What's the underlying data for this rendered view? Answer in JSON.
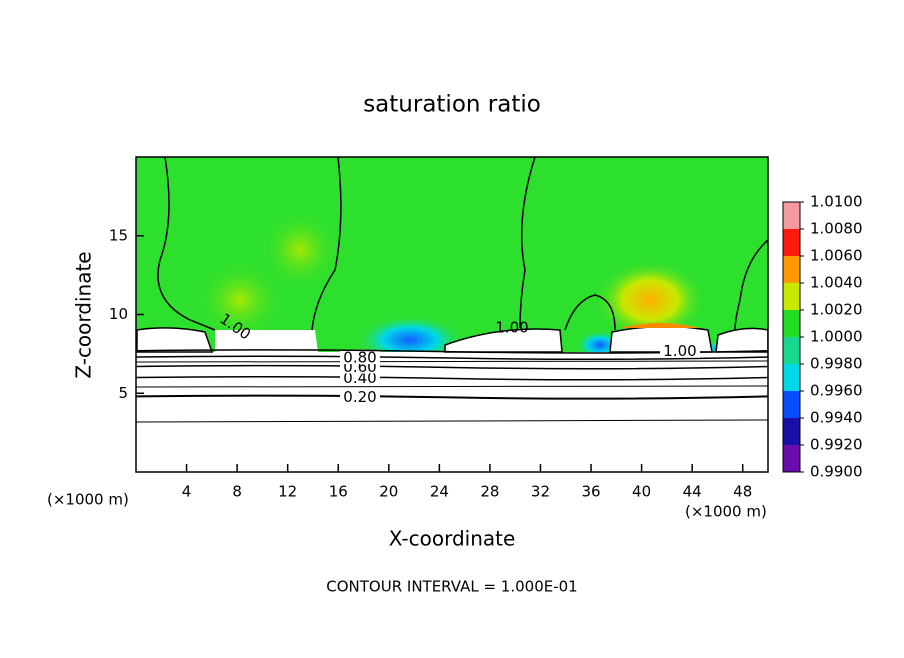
{
  "chart_data": {
    "type": "contour",
    "title": "saturation ratio",
    "x_label": "X-coordinate",
    "y_label": "Z-coordinate",
    "x_unit_left": "(×1000 m)",
    "x_unit_right": "(×1000 m)",
    "footnote": "CONTOUR INTERVAL = 1.000E-01",
    "xlim": [
      0,
      50
    ],
    "ylim": [
      0,
      20
    ],
    "xticks": [
      4,
      8,
      12,
      16,
      20,
      24,
      28,
      32,
      36,
      40,
      44,
      48
    ],
    "yticks": [
      5,
      10,
      15
    ],
    "contours": {
      "levels": [
        0.2,
        0.4,
        0.6,
        0.8,
        1.0
      ],
      "level_labels": [
        "0.20",
        "0.40",
        "0.60",
        "0.80",
        "1.00"
      ],
      "z": [
        4.8,
        6.0,
        6.7,
        7.3,
        7.7
      ]
    },
    "colorbar": {
      "lim": [
        0.99,
        1.01
      ],
      "colors": [
        "#6a0dad",
        "#1a10a8",
        "#0a4cff",
        "#00d8e8",
        "#18d890",
        "#22dd22",
        "#c8e800",
        "#ff9a00",
        "#ff1a10",
        "#f59aa0"
      ],
      "ticks": [
        {
          "value": 1.01,
          "label": "1.0100"
        },
        {
          "value": 1.008,
          "label": "1.0080"
        },
        {
          "value": 1.006,
          "label": "1.0060"
        },
        {
          "value": 1.004,
          "label": "1.0040"
        },
        {
          "value": 1.002,
          "label": "1.0020"
        },
        {
          "value": 1.0,
          "label": "1.0000"
        },
        {
          "value": 0.998,
          "label": "0.9980"
        },
        {
          "value": 0.996,
          "label": "0.9960"
        },
        {
          "value": 0.994,
          "label": "0.9940"
        },
        {
          "value": 0.992,
          "label": "0.9920"
        },
        {
          "value": 0.99,
          "label": "0.9900"
        }
      ]
    }
  }
}
